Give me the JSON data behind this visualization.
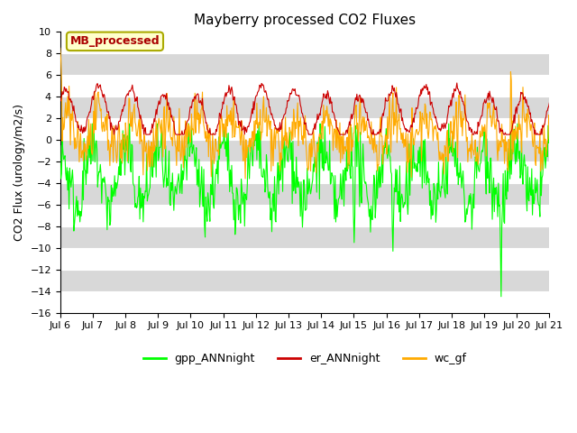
{
  "title": "Mayberry processed CO2 Fluxes",
  "ylabel": "CO2 Flux (urology/m2/s)",
  "ylim": [
    -16,
    10
  ],
  "yticks": [
    -16,
    -14,
    -12,
    -10,
    -8,
    -6,
    -4,
    -2,
    0,
    2,
    4,
    6,
    8,
    10
  ],
  "xstart_day": 6,
  "xend_day": 21,
  "n_points": 720,
  "color_gpp": "#00ff00",
  "color_er": "#cc0000",
  "color_wc": "#ffaa00",
  "legend_box_label": "MB_processed",
  "legend_box_facecolor": "#ffffcc",
  "legend_box_edgecolor": "#aaaa00",
  "legend_box_textcolor": "#aa0000",
  "legend_items": [
    "gpp_ANNnight",
    "er_ANNnight",
    "wc_gf"
  ],
  "bg_color": "#ffffff",
  "grid_color": "#ffffff",
  "band_colors": [
    "#ffffff",
    "#d8d8d8"
  ],
  "linewidth": 0.8,
  "seed": 42
}
